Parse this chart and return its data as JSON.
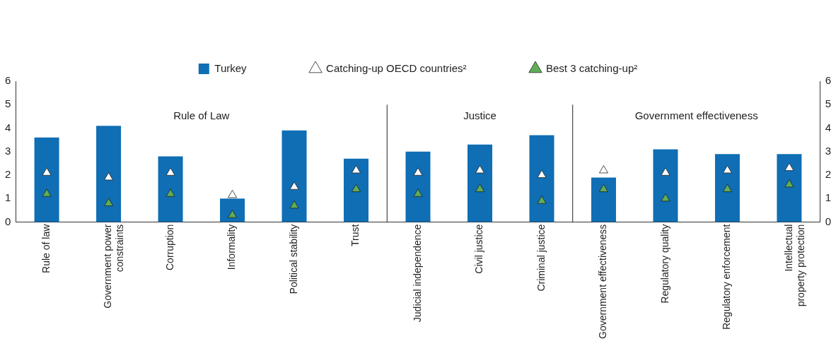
{
  "chart_data": {
    "type": "bar",
    "categories": [
      "Rule of law",
      "Government power constraints",
      "Corruption",
      "Informality",
      "Political stability",
      "Trust",
      "Judicial independence",
      "Civil justice",
      "Criminal justice",
      "Government effectiveness",
      "Regulatory quality",
      "Regulatory enforcement",
      "Intellectual property protection"
    ],
    "series": [
      {
        "name": "Turkey",
        "color": "#0f6eb4",
        "values": [
          3.6,
          4.1,
          2.8,
          1.0,
          3.9,
          2.7,
          3.0,
          3.3,
          3.7,
          1.9,
          3.1,
          2.9,
          2.9
        ]
      },
      {
        "name": "Catching-up OECD countries²",
        "type": "scatter",
        "color": "#ffffff",
        "x": [
          "Rule of law",
          "Government power constraints",
          "Corruption",
          "Informality",
          "Political stability",
          "Trust",
          "Judicial independence",
          "Civil justice",
          "Criminal justice",
          "Government effectiveness",
          "Regulatory quality",
          "Regulatory enforcement",
          "Intellectual property protection"
        ],
        "values": [
          2.1,
          1.9,
          2.1,
          1.15,
          1.5,
          2.2,
          2.1,
          2.2,
          2.0,
          2.2,
          2.1,
          2.2,
          2.3
        ]
      },
      {
        "name": "Best 3 catching-up²",
        "type": "scatter",
        "color": "#5fae57",
        "x": [
          "Rule of law",
          "Government power constraints",
          "Corruption",
          "Informality",
          "Political stability",
          "Trust",
          "Judicial independence",
          "Civil justice",
          "Criminal justice",
          "Government effectiveness",
          "Regulatory quality",
          "Regulatory enforcement",
          "Intellectual property protection"
        ],
        "values": [
          1.2,
          0.8,
          1.2,
          0.3,
          0.7,
          1.4,
          1.2,
          1.4,
          0.9,
          1.4,
          1.0,
          1.4,
          1.6
        ]
      }
    ],
    "ylim": [
      0,
      6
    ],
    "yticks": [
      0,
      1,
      2,
      3,
      4,
      5,
      6
    ],
    "y2lim": [
      0,
      6
    ],
    "y2ticks": [
      0,
      1,
      2,
      3,
      4,
      5,
      6
    ],
    "marker": "triangle",
    "grid": false,
    "legend": "top",
    "annotations": [
      "Rule of Law",
      "Justice",
      "Government effectiveness"
    ]
  }
}
